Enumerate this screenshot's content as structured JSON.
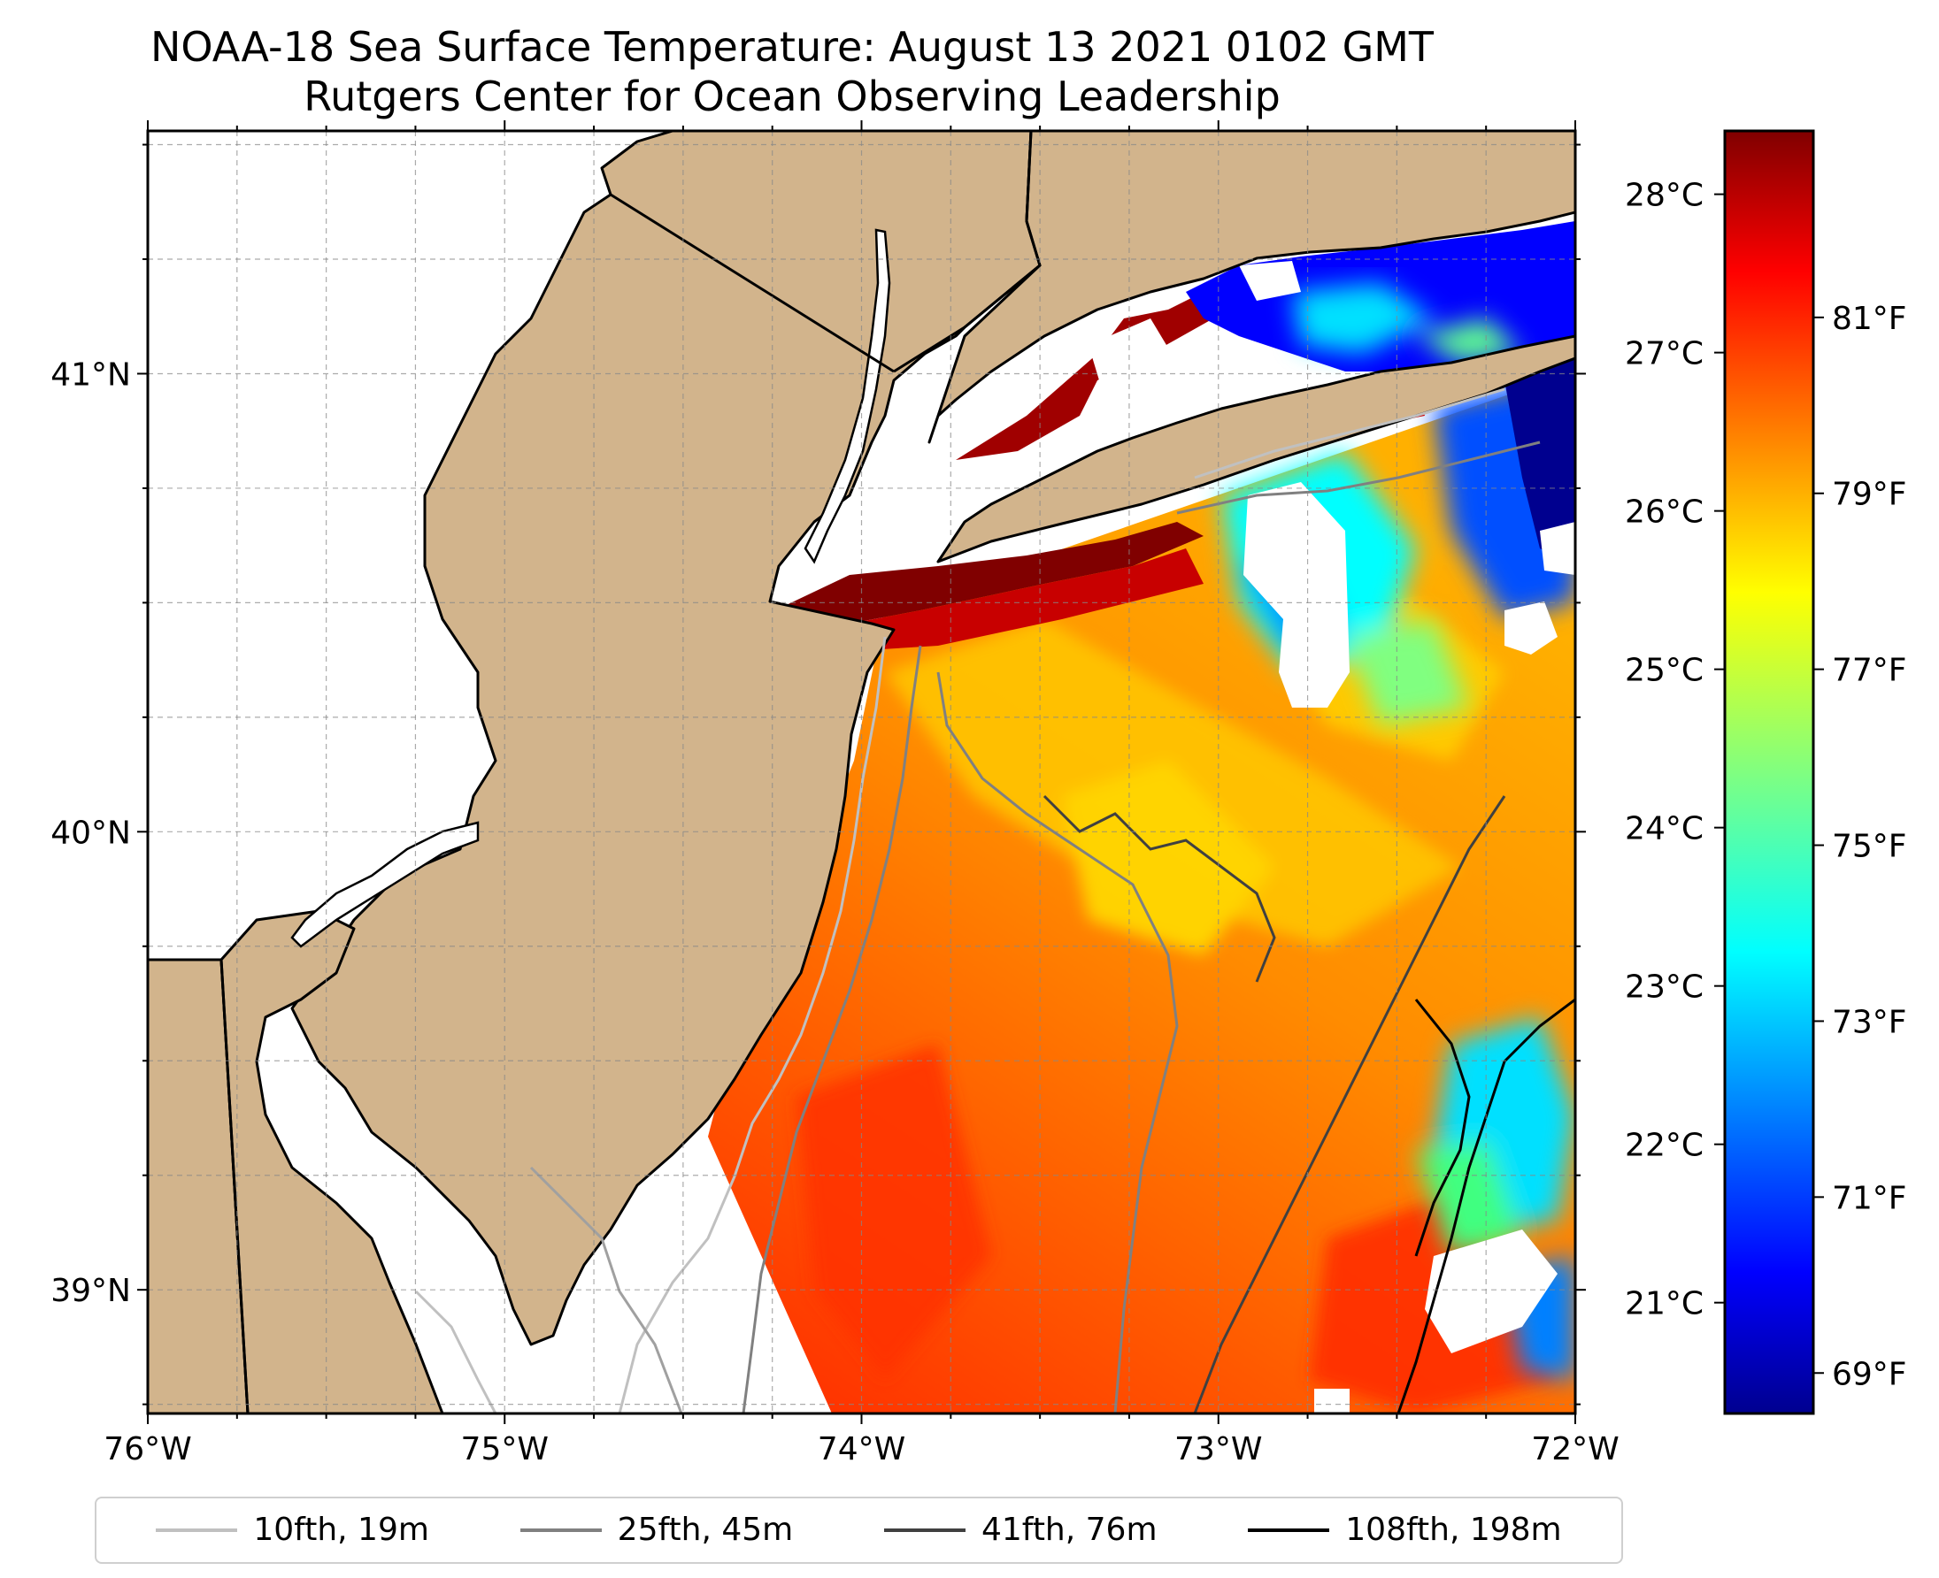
{
  "title": "NOAA-18 Sea Surface Temperature: August 13 2021 0102 GMT",
  "subtitle": "Rutgers Center for Ocean Observing Leadership",
  "map": {
    "lon_range": [
      -76,
      -72
    ],
    "lat_range": [
      38.73,
      41.53
    ],
    "lon_ticks": [
      {
        "value": -76,
        "label": "76°W"
      },
      {
        "value": -75,
        "label": "75°W"
      },
      {
        "value": -74,
        "label": "74°W"
      },
      {
        "value": -73,
        "label": "73°W"
      },
      {
        "value": -72,
        "label": "72°W"
      }
    ],
    "lat_ticks": [
      {
        "value": 39,
        "label": "39°N"
      },
      {
        "value": 40,
        "label": "40°N"
      },
      {
        "value": 41,
        "label": "41°N"
      }
    ],
    "grid": true,
    "land_color": "#d2b48c",
    "no_data_color": "#ffffff"
  },
  "colorbar": {
    "colormap": "jet",
    "range_c": [
      20.3,
      28.4
    ],
    "celsius_ticks": [
      {
        "value": 21,
        "label": "21°C"
      },
      {
        "value": 22,
        "label": "22°C"
      },
      {
        "value": 23,
        "label": "23°C"
      },
      {
        "value": 24,
        "label": "24°C"
      },
      {
        "value": 25,
        "label": "25°C"
      },
      {
        "value": 26,
        "label": "26°C"
      },
      {
        "value": 27,
        "label": "27°C"
      },
      {
        "value": 28,
        "label": "28°C"
      }
    ],
    "fahrenheit_ticks": [
      {
        "value": 69,
        "label": "69°F"
      },
      {
        "value": 71,
        "label": "71°F"
      },
      {
        "value": 73,
        "label": "73°F"
      },
      {
        "value": 75,
        "label": "75°F"
      },
      {
        "value": 77,
        "label": "77°F"
      },
      {
        "value": 79,
        "label": "79°F"
      },
      {
        "value": 81,
        "label": "81°F"
      }
    ]
  },
  "legend": {
    "items": [
      {
        "label": "10fth, 19m",
        "color": "#c0c0c0"
      },
      {
        "label": "25fth, 45m",
        "color": "#808080"
      },
      {
        "label": "41fth, 76m",
        "color": "#404040"
      },
      {
        "label": "108fth, 198m",
        "color": "#000000"
      }
    ]
  }
}
